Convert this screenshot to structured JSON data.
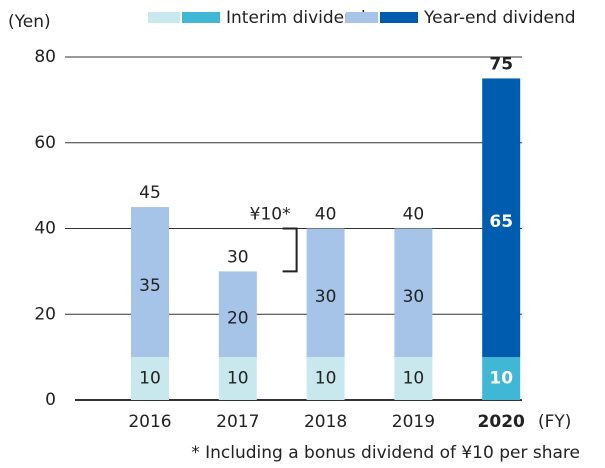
{
  "chart_data": {
    "type": "stacked-bar",
    "y_label": "(Yen)",
    "x_label": "(FY)",
    "categories": [
      "2016",
      "2017",
      "2018",
      "2019",
      "2020"
    ],
    "highlight": "2020",
    "series": [
      {
        "name": "Interim dividend",
        "color": "#c9e8ee",
        "highlight_color": "#3fb7d5",
        "values": [
          10,
          10,
          10,
          10,
          10
        ]
      },
      {
        "name": "Year-end dividend",
        "color": "#a6c4e7",
        "highlight_color": "#005caf",
        "values": [
          35,
          20,
          30,
          30,
          65
        ]
      }
    ],
    "totals": [
      45,
      30,
      40,
      40,
      75
    ],
    "annotation": {
      "label": "¥10*",
      "category": "2018"
    },
    "footnote": "* Including a bonus dividend of ¥10 per share",
    "ylim": [
      0,
      80
    ],
    "yticks": [
      0,
      20,
      40,
      60,
      80
    ],
    "grid": true
  }
}
